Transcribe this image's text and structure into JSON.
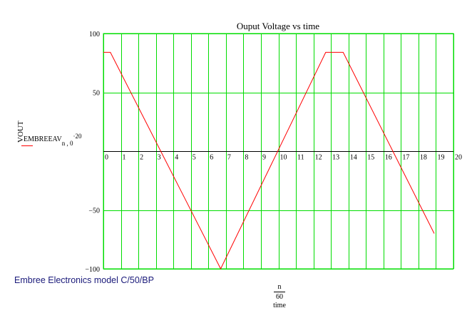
{
  "chart_data": {
    "type": "line",
    "title": "Ouput Voltage vs time",
    "ylabel": "VOUT",
    "series_label": {
      "base": "EMBREEAV",
      "subscript": "n , 0",
      "superscript": "·20"
    },
    "xlabel": {
      "numerator": "n",
      "denominator": "60",
      "label": "time"
    },
    "xlim": [
      0,
      20
    ],
    "ylim": [
      -100,
      100
    ],
    "x_ticks": [
      "0",
      "1",
      "2",
      "3",
      "4",
      "5",
      "6",
      "7",
      "8",
      "9",
      "10",
      "11",
      "12",
      "13",
      "14",
      "15",
      "16",
      "17",
      "18",
      "19",
      "20"
    ],
    "y_ticks": [
      "100",
      "50",
      "−50",
      "−100"
    ],
    "y_tick_values": [
      100,
      50,
      -50,
      -100
    ],
    "grid": true,
    "series": [
      {
        "color": "#ff0000",
        "x": [
          0,
          0.4,
          6.7,
          12.7,
          13.7,
          18.9
        ],
        "y": [
          84,
          84,
          -100,
          84,
          84,
          -70
        ]
      }
    ]
  },
  "footer": "Embree Electronics model C/50/BP"
}
